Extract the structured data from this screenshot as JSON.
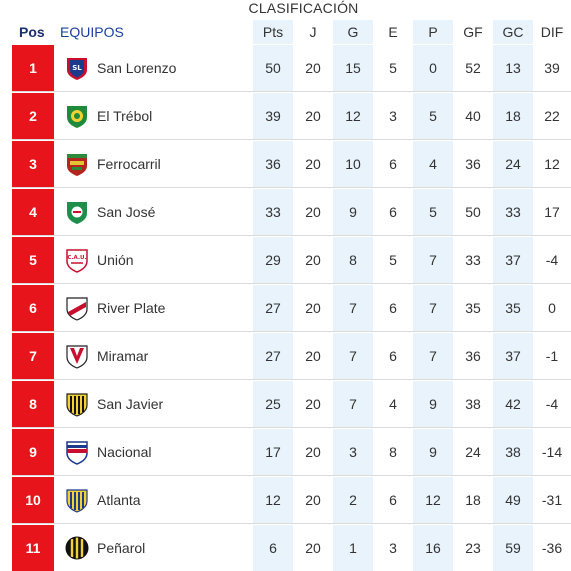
{
  "caption": "CLASIFICACIÓN",
  "header": {
    "pos": "Pos",
    "team": "EQUIPOS",
    "pts": "Pts",
    "j": "J",
    "g": "G",
    "e": "E",
    "p": "P",
    "gf": "GF",
    "gc": "GC",
    "dif": "DIF"
  },
  "colors": {
    "position_badge": "#e8141b",
    "header_pos": "#1a2f6e",
    "header_team": "#1a3fa0",
    "highlight_column": "#e9f3fb"
  },
  "rows": [
    {
      "pos": "1",
      "team": "San Lorenzo",
      "crest": "san-lorenzo-crest",
      "pts": "50",
      "j": "20",
      "g": "15",
      "e": "5",
      "p": "0",
      "gf": "52",
      "gc": "13",
      "dif": "39"
    },
    {
      "pos": "2",
      "team": "El Trébol",
      "crest": "el-trebol-crest",
      "pts": "39",
      "j": "20",
      "g": "12",
      "e": "3",
      "p": "5",
      "gf": "40",
      "gc": "18",
      "dif": "22"
    },
    {
      "pos": "3",
      "team": "Ferrocarril",
      "crest": "ferrocarril-crest",
      "pts": "36",
      "j": "20",
      "g": "10",
      "e": "6",
      "p": "4",
      "gf": "36",
      "gc": "24",
      "dif": "12"
    },
    {
      "pos": "4",
      "team": "San José",
      "crest": "san-jose-crest",
      "pts": "33",
      "j": "20",
      "g": "9",
      "e": "6",
      "p": "5",
      "gf": "50",
      "gc": "33",
      "dif": "17"
    },
    {
      "pos": "5",
      "team": "Unión",
      "crest": "union-crest",
      "pts": "29",
      "j": "20",
      "g": "8",
      "e": "5",
      "p": "7",
      "gf": "33",
      "gc": "37",
      "dif": "-4"
    },
    {
      "pos": "6",
      "team": "River Plate",
      "crest": "river-plate-crest",
      "pts": "27",
      "j": "20",
      "g": "7",
      "e": "6",
      "p": "7",
      "gf": "35",
      "gc": "35",
      "dif": "0"
    },
    {
      "pos": "7",
      "team": "Miramar",
      "crest": "miramar-crest",
      "pts": "27",
      "j": "20",
      "g": "7",
      "e": "6",
      "p": "7",
      "gf": "36",
      "gc": "37",
      "dif": "-1"
    },
    {
      "pos": "8",
      "team": "San Javier",
      "crest": "san-javier-crest",
      "pts": "25",
      "j": "20",
      "g": "7",
      "e": "4",
      "p": "9",
      "gf": "38",
      "gc": "42",
      "dif": "-4"
    },
    {
      "pos": "9",
      "team": "Nacional",
      "crest": "nacional-crest",
      "pts": "17",
      "j": "20",
      "g": "3",
      "e": "8",
      "p": "9",
      "gf": "24",
      "gc": "38",
      "dif": "-14"
    },
    {
      "pos": "10",
      "team": "Atlanta",
      "crest": "atlanta-crest",
      "pts": "12",
      "j": "20",
      "g": "2",
      "e": "6",
      "p": "12",
      "gf": "18",
      "gc": "49",
      "dif": "-31"
    },
    {
      "pos": "11",
      "team": "Peñarol",
      "crest": "penarol-crest",
      "pts": "6",
      "j": "20",
      "g": "1",
      "e": "3",
      "p": "16",
      "gf": "23",
      "gc": "59",
      "dif": "-36"
    }
  ]
}
